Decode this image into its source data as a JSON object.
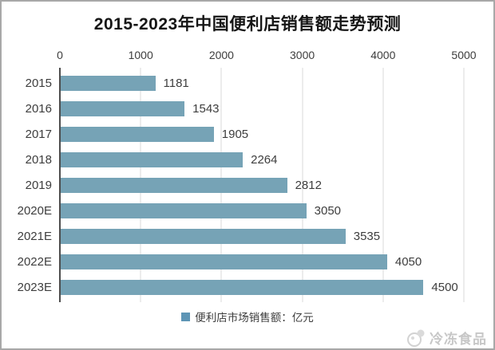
{
  "title": "2015-2023年中国便利店销售额走势预测",
  "chart_data": {
    "type": "bar",
    "orientation": "horizontal",
    "title": "2015-2023年中国便利店销售额走势预测",
    "categories": [
      "2015",
      "2016",
      "2017",
      "2018",
      "2019",
      "2020E",
      "2021E",
      "2022E",
      "2023E"
    ],
    "values": [
      1181,
      1543,
      1905,
      2264,
      2812,
      3050,
      3535,
      4050,
      4500
    ],
    "x_ticks": [
      0,
      1000,
      2000,
      3000,
      4000,
      5000
    ],
    "xlim": [
      0,
      5000
    ],
    "xlabel": "",
    "ylabel": "",
    "grid": true,
    "gridline_color": "#d9d9d9",
    "bar_color": "#76a3b6",
    "legend": [
      "便利店市场销售额：亿元"
    ],
    "legend_position": "bottom"
  },
  "legend": {
    "label": "便利店市场销售额：亿元",
    "marker_color": "#5d95b5"
  },
  "watermark": {
    "text": "冷冻食品"
  },
  "colors": {
    "bar": "#76a3b6",
    "axis_line": "#4d4d4d",
    "gridline": "#d9d9d9",
    "text": "#3d3d3d",
    "border": "#a8a8a8",
    "watermark": "#c7c7c7"
  }
}
